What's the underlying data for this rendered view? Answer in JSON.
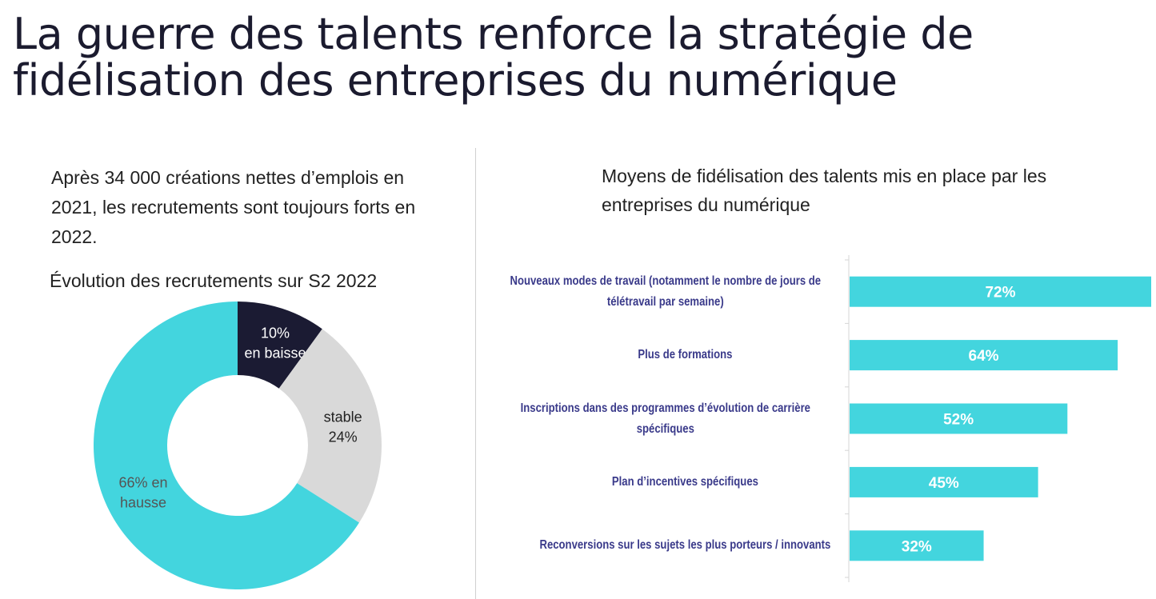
{
  "title": "La guerre des talents renforce la stratégie de fidélisation des entreprises du numérique",
  "intro": "Après 34 000 créations nettes d’emplois en 2021, les recrutements sont toujours forts en 2022.",
  "chart_data": [
    {
      "type": "pie",
      "title": "Évolution des recrutements sur S2 2022",
      "donut": true,
      "slices": [
        {
          "label": "en baisse",
          "value": 10,
          "display": [
            "10%",
            "en baisse"
          ],
          "color": "#1b1b33",
          "text_color": "#ffffff"
        },
        {
          "label": "stable",
          "value": 24,
          "display": [
            "stable",
            "24%"
          ],
          "color": "#d9d9d9",
          "text_color": "#222222"
        },
        {
          "label": "en hausse",
          "value": 66,
          "display": [
            "66% en",
            "hausse"
          ],
          "color": "#43d5de",
          "text_color": "#555555"
        }
      ]
    },
    {
      "type": "bar",
      "orientation": "horizontal",
      "title": "Moyens de fidélisation des talents mis en place par les entreprises du numérique",
      "categories": [
        "Nouveaux modes de travail (notamment le nombre de jours de télétravail par semaine)",
        "Plus de formations",
        "Inscriptions dans des programmes d’évolution de carrière spécifiques",
        "Plan d’incentives spécifiques",
        "Reconversions sur les sujets les plus porteurs / innovants"
      ],
      "values": [
        72,
        64,
        52,
        45,
        32
      ],
      "data_labels": [
        "72%",
        "64%",
        "52%",
        "45%",
        "32%"
      ],
      "xlim": [
        0,
        72
      ],
      "color": "#43d5de",
      "label_color": "#3a3a8a"
    }
  ]
}
